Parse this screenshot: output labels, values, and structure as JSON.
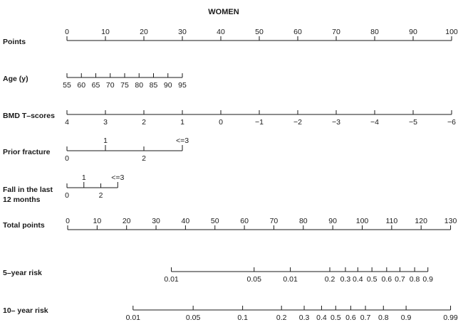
{
  "title": "WOMEN",
  "scales": [
    {
      "key": "points",
      "label": [
        "Points"
      ],
      "ticks": [
        [
          "0",
          0
        ],
        [
          "10",
          10
        ],
        [
          "20",
          20
        ],
        [
          "30",
          30
        ],
        [
          "40",
          40
        ],
        [
          "50",
          50
        ],
        [
          "60",
          60
        ],
        [
          "70",
          70
        ],
        [
          "80",
          80
        ],
        [
          "90",
          90
        ],
        [
          "100",
          100
        ]
      ]
    },
    {
      "key": "age",
      "label": [
        "Age (y)"
      ],
      "ticks": [
        [
          "55",
          0
        ],
        [
          "60",
          3.75
        ],
        [
          "65",
          7.5
        ],
        [
          "70",
          11.25
        ],
        [
          "75",
          15
        ],
        [
          "80",
          18.75
        ],
        [
          "85",
          22.5
        ],
        [
          "90",
          26.25
        ],
        [
          "95",
          30
        ]
      ]
    },
    {
      "key": "bmd",
      "label": [
        "BMD T–scores"
      ],
      "ticks": [
        [
          "4",
          0
        ],
        [
          "3",
          10
        ],
        [
          "2",
          20
        ],
        [
          "1",
          30
        ],
        [
          "0",
          40
        ],
        [
          "−1",
          50
        ],
        [
          "−2",
          60
        ],
        [
          "−3",
          70
        ],
        [
          "−4",
          80
        ],
        [
          "−5",
          90
        ],
        [
          "−6",
          100
        ]
      ]
    },
    {
      "key": "prior_fracture",
      "label": [
        "Prior fracture"
      ],
      "ticks": [
        [
          "0",
          0
        ],
        [
          "2",
          20
        ]
      ],
      "upper_ticks": [
        [
          "1",
          10
        ],
        [
          "<=3",
          30
        ]
      ]
    },
    {
      "key": "fall",
      "label": [
        "Fall in the last",
        "12 months"
      ],
      "ticks": [
        [
          "0",
          0
        ],
        [
          "2",
          8.8
        ]
      ],
      "upper_ticks": [
        [
          "1",
          4.4
        ],
        [
          "<=3",
          13.2
        ]
      ]
    },
    {
      "key": "total",
      "label": [
        "Total points"
      ],
      "ticks": [
        [
          "0",
          0
        ],
        [
          "10",
          10
        ],
        [
          "20",
          20
        ],
        [
          "30",
          30
        ],
        [
          "40",
          40
        ],
        [
          "50",
          50
        ],
        [
          "60",
          60
        ],
        [
          "70",
          70
        ],
        [
          "80",
          80
        ],
        [
          "90",
          90
        ],
        [
          "100",
          100
        ],
        [
          "110",
          110
        ],
        [
          "120",
          120
        ],
        [
          "130",
          130
        ]
      ]
    },
    {
      "key": "risk5",
      "label": [
        "5–year risk"
      ],
      "ticks": [
        [
          "0.01",
          35.2
        ],
        [
          "0.05",
          63.3
        ],
        [
          "0.01",
          75.6
        ],
        [
          "0.2",
          89.0
        ],
        [
          "0.3",
          94.3
        ],
        [
          "0.4",
          98.5
        ],
        [
          "0.5",
          103.3
        ],
        [
          "0.6",
          108.3
        ],
        [
          "0.7",
          112.8
        ],
        [
          "0.8",
          117.8
        ],
        [
          "0.9",
          122.3
        ]
      ]
    },
    {
      "key": "risk10",
      "label": [
        "10– year risk"
      ],
      "ticks": [
        [
          "0.01",
          22.2
        ],
        [
          "0.05",
          42.6
        ],
        [
          "0.1",
          59.4
        ],
        [
          "0.2",
          72.6
        ],
        [
          "0.3",
          80.3
        ],
        [
          "0.4",
          86.2
        ],
        [
          "0.5",
          91.0
        ],
        [
          "0.6",
          96.1
        ],
        [
          "0.7",
          101.1
        ],
        [
          "0.8",
          107.2
        ],
        [
          "0.9",
          114.9
        ],
        [
          "0.99",
          130
        ]
      ]
    }
  ]
}
